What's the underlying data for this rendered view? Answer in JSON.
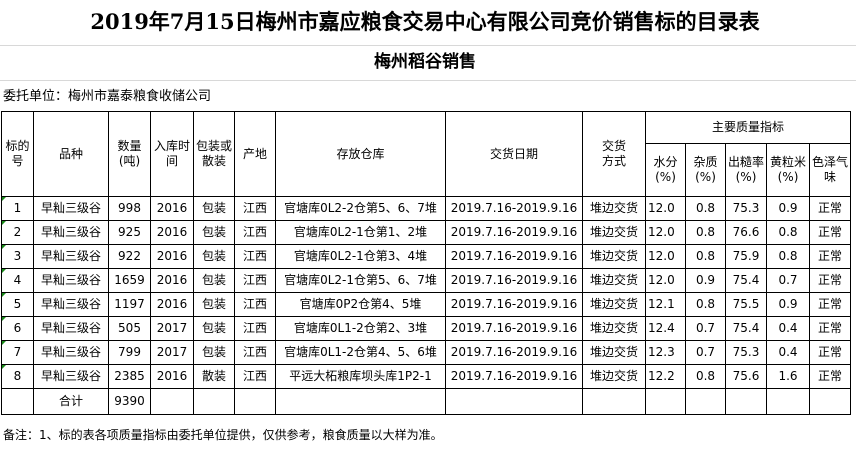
{
  "title": "2019年7月15日梅州市嘉应粮食交易中心有限公司竞价销售标的目录表",
  "subtitle": "梅州稻谷销售",
  "client": "委托单位：梅州市嘉泰粮食收储公司",
  "headers": {
    "lot": "标的号",
    "variety": "品种",
    "quantity": "数量(吨)",
    "year": "入库时间",
    "packing": "包装或散装",
    "origin": "产地",
    "warehouse": "存放仓库",
    "delivery_date": "交货日期",
    "delivery_method": "交货方式",
    "quality_group": "主要质量指标",
    "moisture": "水分(%)",
    "impurity": "杂质(%)",
    "yield": "出糙率(%)",
    "yellow": "黄粒米(%)",
    "color_smell": "色泽气味"
  },
  "rows": [
    [
      "1",
      "早籼三级谷",
      "998",
      "2016",
      "包装",
      "江西",
      "官塘库0L2-2仓第5、6、7堆",
      "2019.7.16-2019.9.16",
      "堆边交货",
      "12.0",
      "0.8",
      "75.3",
      "0.9",
      "正常"
    ],
    [
      "2",
      "早籼三级谷",
      "925",
      "2016",
      "包装",
      "江西",
      "官塘库0L2-1仓第1、2堆",
      "2019.7.16-2019.9.16",
      "堆边交货",
      "12.0",
      "0.8",
      "76.6",
      "0.8",
      "正常"
    ],
    [
      "3",
      "早籼三级谷",
      "922",
      "2016",
      "包装",
      "江西",
      "官塘库0L2-1仓第3、4堆",
      "2019.7.16-2019.9.16",
      "堆边交货",
      "12.0",
      "0.8",
      "75.9",
      "0.8",
      "正常"
    ],
    [
      "4",
      "早籼三级谷",
      "1659",
      "2016",
      "包装",
      "江西",
      "官塘库0L2-1仓第5、6、7堆",
      "2019.7.16-2019.9.16",
      "堆边交货",
      "12.0",
      "0.9",
      "75.4",
      "0.7",
      "正常"
    ],
    [
      "5",
      "早籼三级谷",
      "1197",
      "2016",
      "包装",
      "江西",
      "官塘库0P2仓第4、5堆",
      "2019.7.16-2019.9.16",
      "堆边交货",
      "12.1",
      "0.8",
      "75.5",
      "0.9",
      "正常"
    ],
    [
      "6",
      "早籼三级谷",
      "505",
      "2017",
      "包装",
      "江西",
      "官塘库0L1-2仓第2、3堆",
      "2019.7.16-2019.9.16",
      "堆边交货",
      "12.4",
      "0.7",
      "75.4",
      "0.4",
      "正常"
    ],
    [
      "7",
      "早籼三级谷",
      "799",
      "2017",
      "包装",
      "江西",
      "官塘库0L1-2仓第4、5、6堆",
      "2019.7.16-2019.9.16",
      "堆边交货",
      "12.3",
      "0.7",
      "75.3",
      "0.4",
      "正常"
    ],
    [
      "8",
      "早籼三级谷",
      "2385",
      "2016",
      "散装",
      "江西",
      "平远大柘粮库坝头库1P2-1",
      "2019.7.16-2019.9.16",
      "堆边交货",
      "12.2",
      "0.8",
      "75.6",
      "1.6",
      "正常"
    ]
  ],
  "total": {
    "label": "合计",
    "quantity": "9390"
  },
  "note": "备注：1、标的表各项质量指标由委托单位提供，仅供参考，粮食质量以大样为准。"
}
